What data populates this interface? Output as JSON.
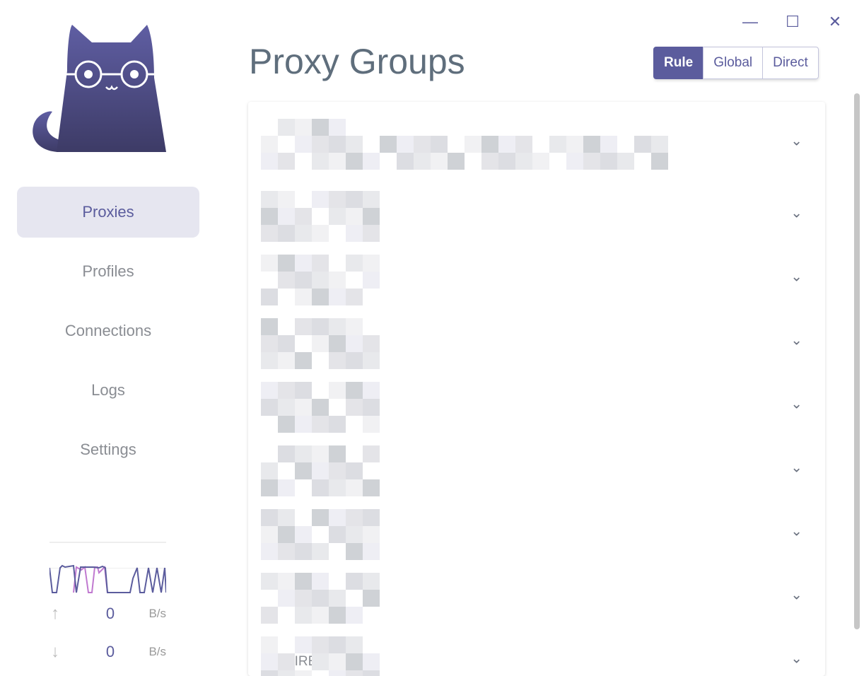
{
  "window": {
    "minimize_icon": "minimize-icon",
    "maximize_icon": "maximize-icon",
    "close_icon": "close-icon"
  },
  "sidebar": {
    "items": [
      {
        "label": "Proxies",
        "active": true
      },
      {
        "label": "Profiles"
      },
      {
        "label": "Connections"
      },
      {
        "label": "Logs"
      },
      {
        "label": "Settings"
      }
    ]
  },
  "traffic": {
    "upload": {
      "value": "0",
      "unit": "B/s"
    },
    "download": {
      "value": "0",
      "unit": "B/s"
    }
  },
  "header": {
    "title": "Proxy Groups",
    "modes": [
      {
        "label": "Rule",
        "selected": true
      },
      {
        "label": "Global"
      },
      {
        "label": "Direct"
      }
    ]
  },
  "groups": {
    "count": 9,
    "last_selected": "DIRECT"
  },
  "colors": {
    "accent": "#5b5c9d",
    "upload_line": "#5b5c9d",
    "download_line": "#c079d0"
  }
}
